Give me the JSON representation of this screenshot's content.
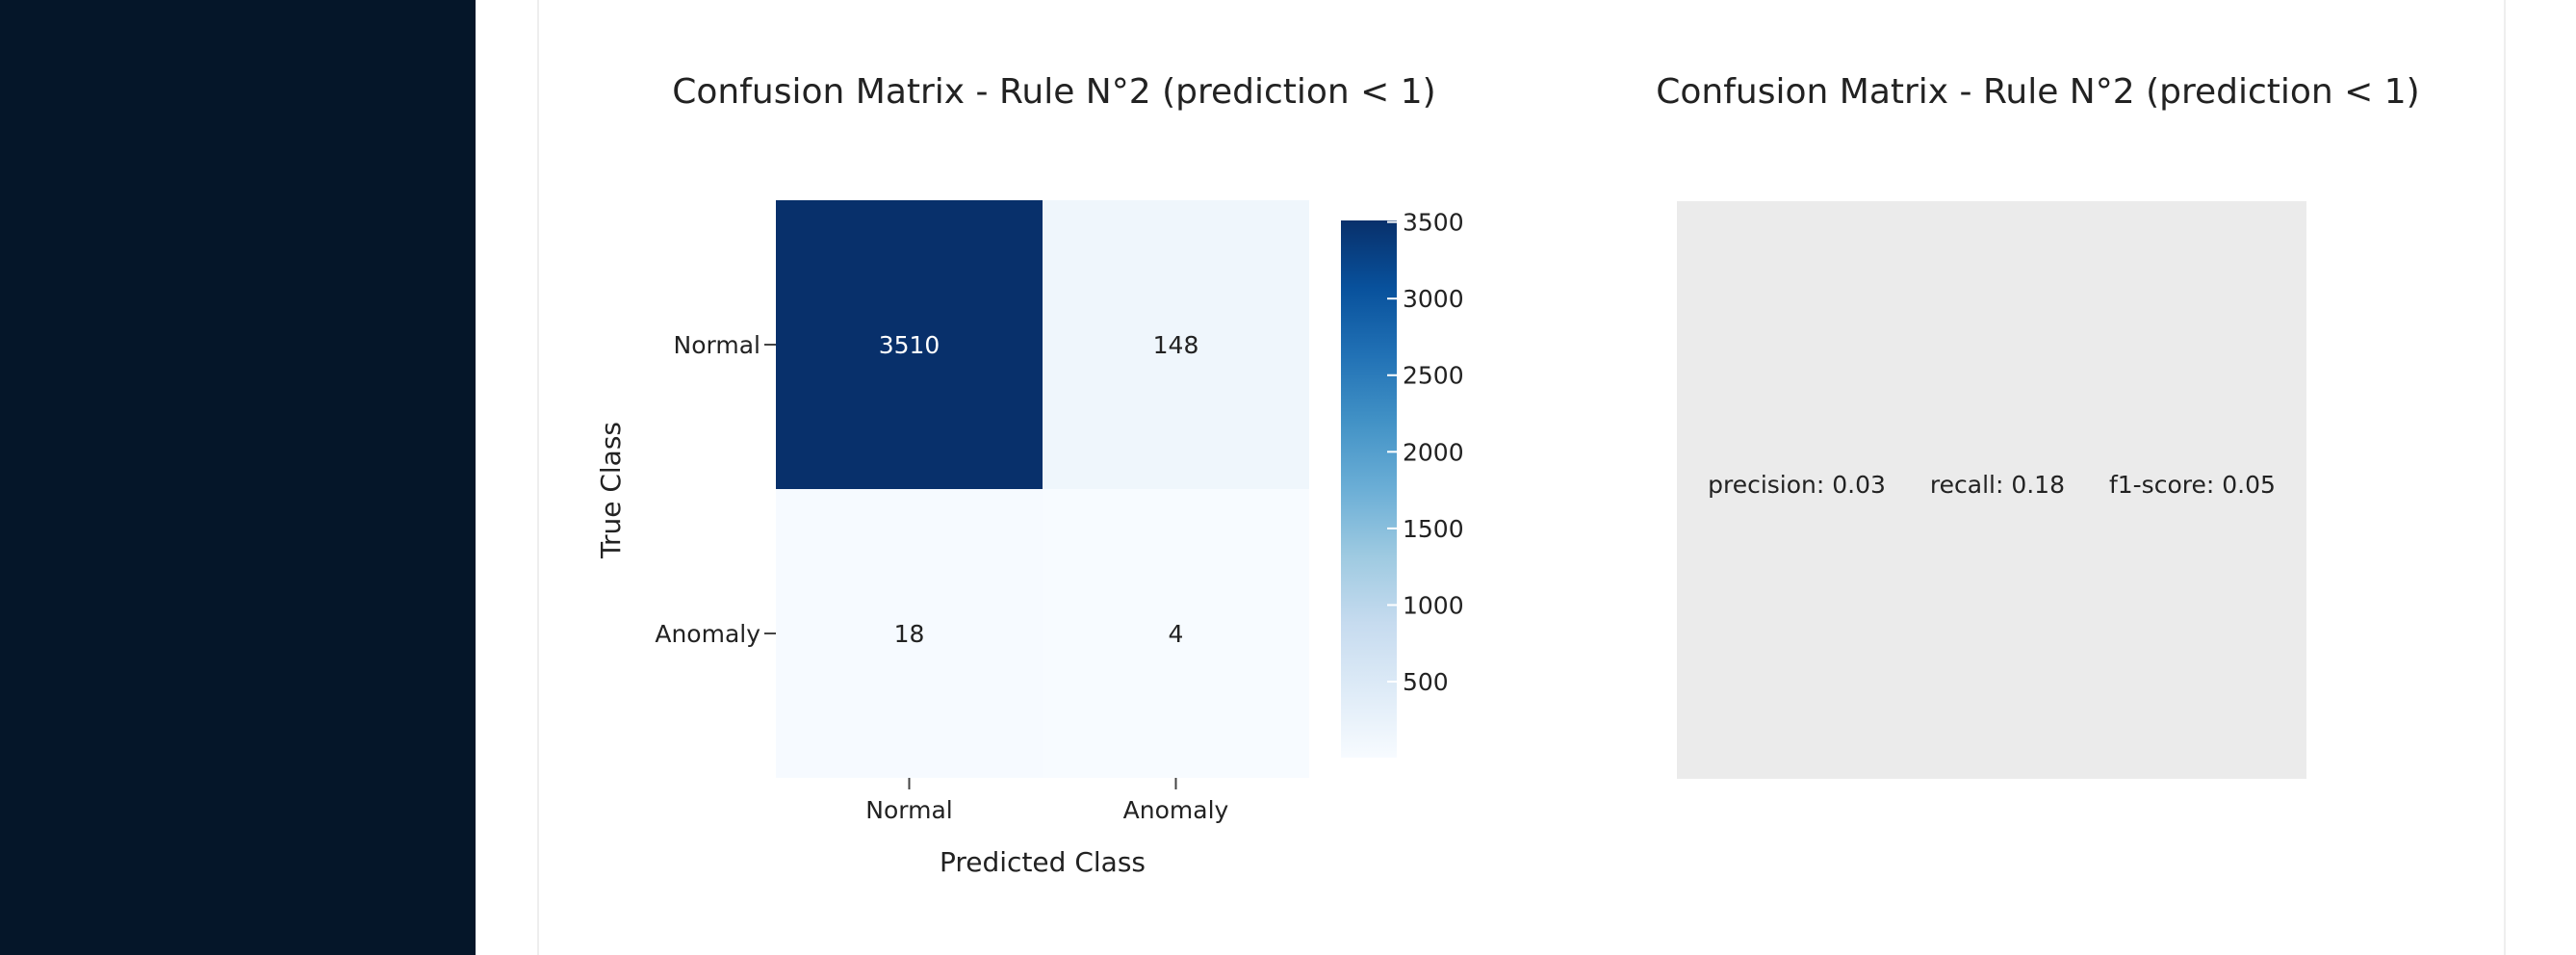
{
  "chart_data": [
    {
      "type": "heatmap",
      "title": "Confusion Matrix - Rule N°2 (prediction < 1)",
      "xlabel": "Predicted Class",
      "ylabel": "True Class",
      "x_categories": [
        "Normal",
        "Anomaly"
      ],
      "y_categories": [
        "Normal",
        "Anomaly"
      ],
      "z": [
        [
          3510,
          148
        ],
        [
          18,
          4
        ]
      ],
      "colorscale": "Blues",
      "zlim": [
        4,
        3510
      ],
      "colorbar": {
        "ticks": [
          500,
          1000,
          1500,
          2000,
          2500,
          3000,
          3500
        ],
        "tick_labels": [
          "500",
          "1000",
          "1500",
          "2000",
          "2500",
          "3000",
          "3500"
        ]
      }
    },
    {
      "type": "table",
      "title": "Confusion Matrix - Rule N°2 (prediction < 1)",
      "metrics": [
        {
          "label": "precision: 0.03",
          "name": "precision",
          "value": 0.03
        },
        {
          "label": "recall: 0.18",
          "name": "recall",
          "value": 0.18
        },
        {
          "label": "f1-score: 0.05",
          "name": "f1-score",
          "value": 0.05
        }
      ]
    }
  ],
  "colors": {
    "sidebar": "#051629",
    "panel": "#ebebeb",
    "text": "#222222"
  }
}
